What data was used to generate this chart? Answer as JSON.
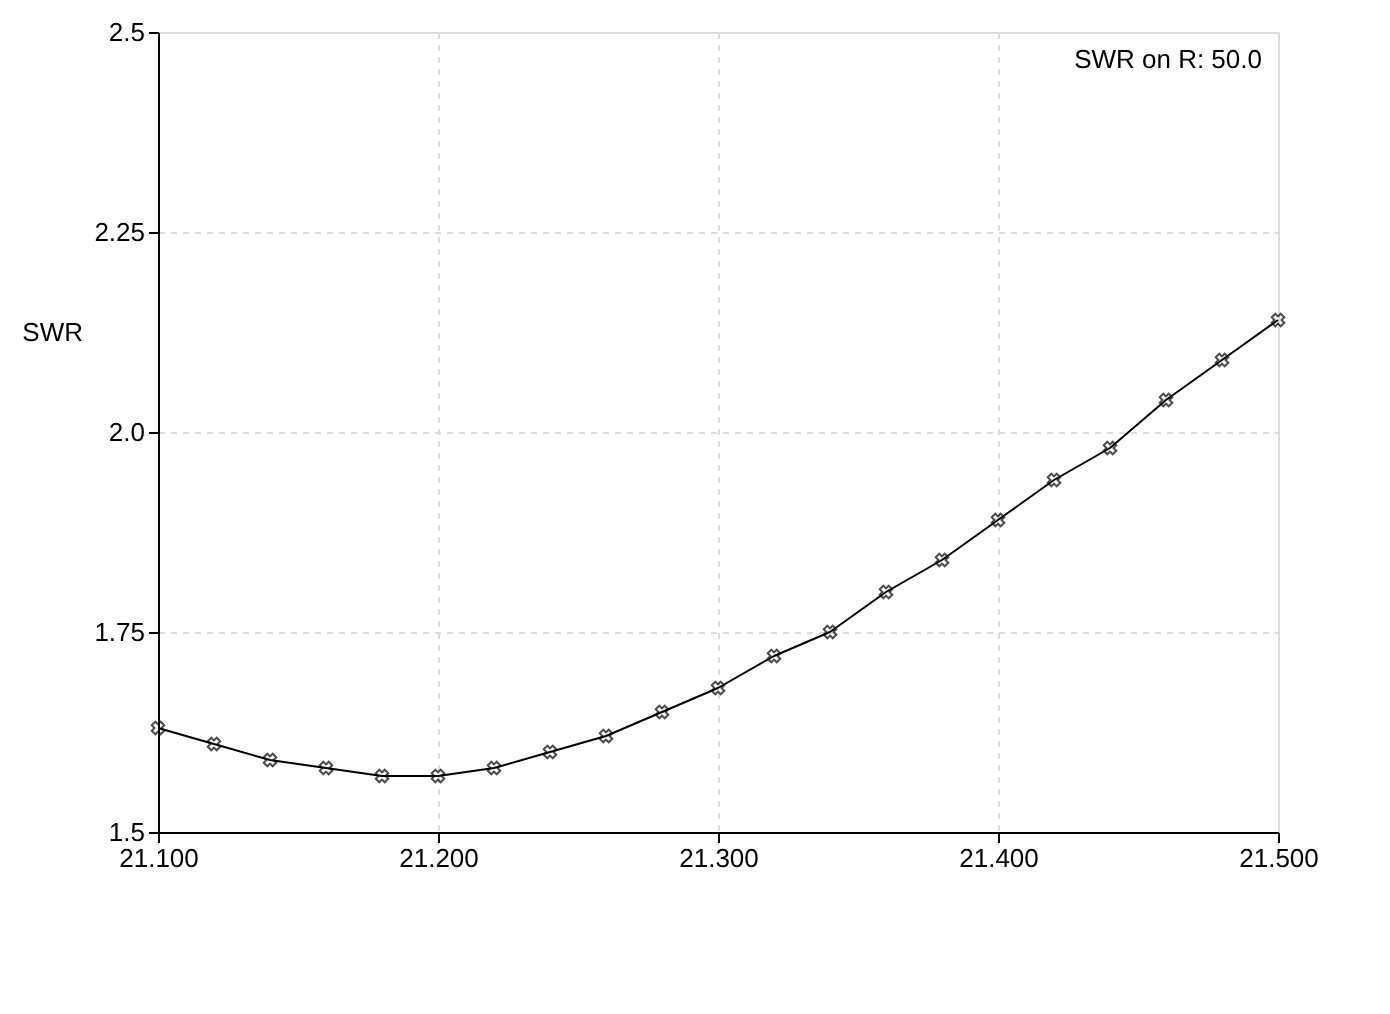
{
  "chart_data": {
    "type": "line",
    "ylabel": "SWR",
    "annotations": [
      "SWR on R: 50.0"
    ],
    "x": [
      21.1,
      21.12,
      21.14,
      21.16,
      21.18,
      21.2,
      21.22,
      21.24,
      21.26,
      21.28,
      21.3,
      21.32,
      21.34,
      21.36,
      21.38,
      21.4,
      21.42,
      21.44,
      21.46,
      21.48,
      21.5
    ],
    "series": [
      {
        "color": "#000000",
        "values": [
          1.63,
          1.61,
          1.59,
          1.58,
          1.57,
          1.57,
          1.58,
          1.6,
          1.62,
          1.65,
          1.68,
          1.72,
          1.75,
          1.8,
          1.84,
          1.89,
          1.94,
          1.98,
          2.04,
          2.09,
          2.14
        ]
      }
    ],
    "xlim": [
      21.1,
      21.5
    ],
    "xticks": [
      {
        "value": 21.1,
        "label": "21.100"
      },
      {
        "value": 21.2,
        "label": "21.200"
      },
      {
        "value": 21.3,
        "label": "21.300"
      },
      {
        "value": 21.4,
        "label": "21.400"
      },
      {
        "value": 21.5,
        "label": "21.500"
      }
    ],
    "ylim": [
      1.5,
      2.5
    ],
    "yticks": [
      1.5,
      1.75,
      {
        "value": 2,
        "label": "2.0"
      },
      2.25,
      2.5
    ],
    "grid": true,
    "marker": "cross",
    "line_style": "solid"
  }
}
